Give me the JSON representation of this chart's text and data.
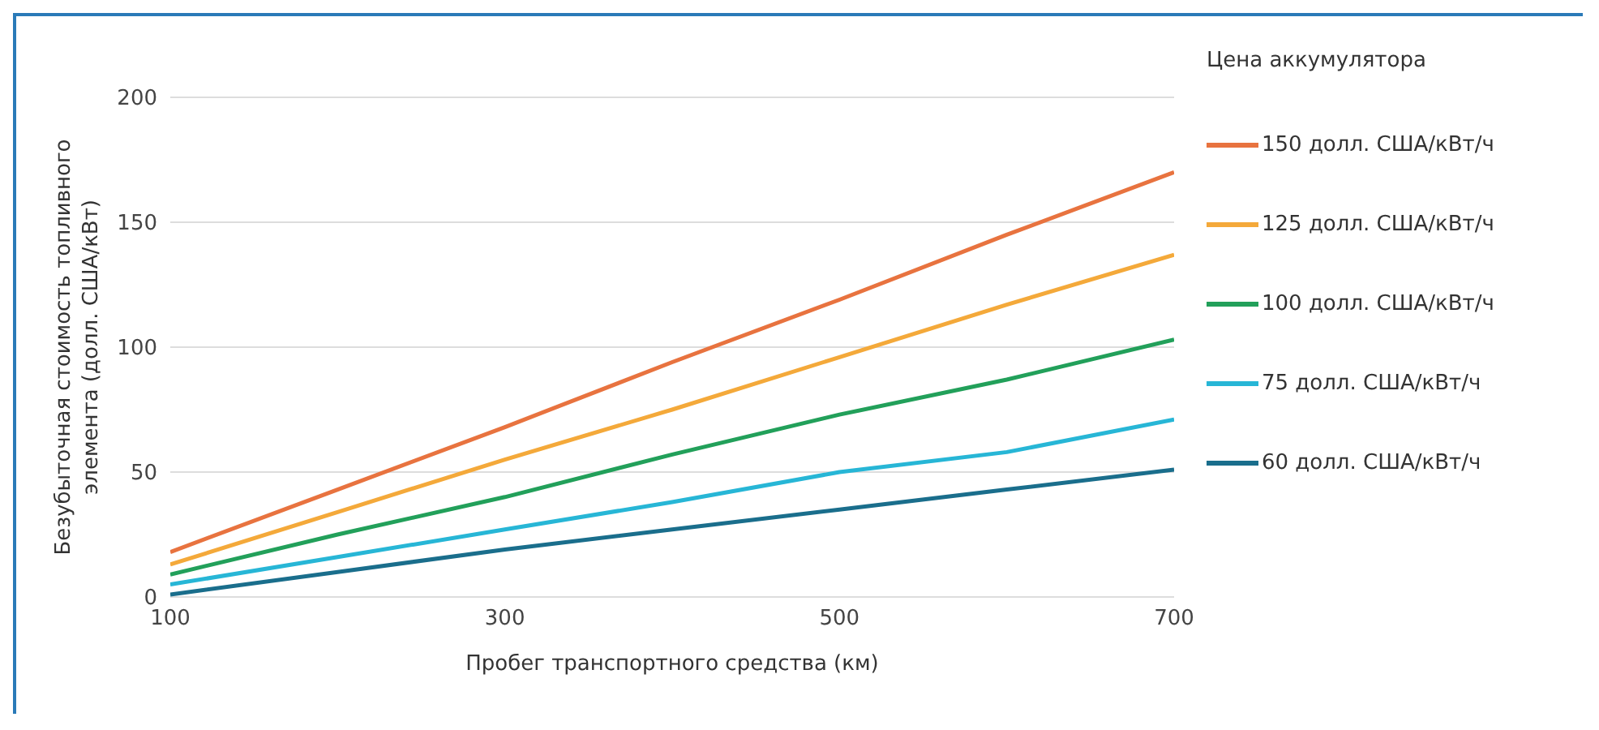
{
  "chart_data": {
    "type": "line",
    "xlabel": "Пробег транспортного средства (км)",
    "ylabel": "Безубыточная стоимость топливного элемента (долл. США/кВт)",
    "legend_title": "Цена аккумулятора",
    "x": [
      100,
      200,
      300,
      400,
      500,
      600,
      700
    ],
    "series": [
      {
        "name": "150 долл. США/кВт/ч",
        "color": "#e8733f",
        "values": [
          18,
          43,
          68,
          94,
          119,
          145,
          170
        ]
      },
      {
        "name": "125 долл. США/кВт/ч",
        "color": "#f4a93a",
        "values": [
          13,
          34,
          55,
          75,
          96,
          117,
          137
        ]
      },
      {
        "name": "100 долл. США/кВт/ч",
        "color": "#22a05a",
        "values": [
          9,
          25,
          40,
          57,
          73,
          87,
          103
        ]
      },
      {
        "name": "75 долл. США/кВт/ч",
        "color": "#27b6d6",
        "values": [
          5,
          16,
          27,
          38,
          50,
          58,
          71
        ]
      },
      {
        "name": "60 долл. США/кВт/ч",
        "color": "#1a6e8c",
        "values": [
          1,
          10,
          19,
          27,
          35,
          43,
          51
        ]
      }
    ],
    "xlim": [
      100,
      700
    ],
    "xticks": [
      100,
      300,
      500,
      700
    ],
    "ylim": [
      0,
      200
    ],
    "yticks": [
      0,
      50,
      100,
      150,
      200
    ],
    "grid": "y",
    "legend": "right",
    "marker": "none",
    "line_style": "solid"
  }
}
